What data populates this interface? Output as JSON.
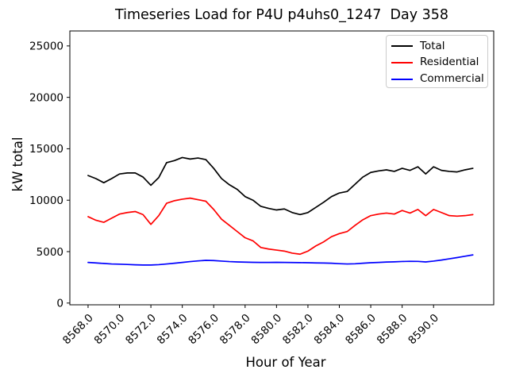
{
  "chart_data": {
    "type": "line",
    "title": "Timeseries Load for P4U p4uhs0_1247  Day 358",
    "xlabel": "Hour of Year",
    "ylabel": "kW total",
    "grid": false,
    "legend_position": "upper right",
    "xlim": [
      8566.84,
      8593.83
    ],
    "ylim": [
      -170,
      26455
    ],
    "x_ticks": [
      8568,
      8570,
      8572,
      8574,
      8576,
      8578,
      8580,
      8582,
      8584,
      8586,
      8588,
      8590
    ],
    "x_tick_labels": [
      "8568.0",
      "8570.0",
      "8572.0",
      "8574.0",
      "8576.0",
      "8578.0",
      "8580.0",
      "8582.0",
      "8584.0",
      "8586.0",
      "8588.0",
      "8590.0"
    ],
    "y_ticks": [
      0,
      5000,
      10000,
      15000,
      20000,
      25000
    ],
    "y_tick_labels": [
      "0",
      "5000",
      "10000",
      "15000",
      "20000",
      "25000"
    ],
    "frame_color": "#000000",
    "tick_label_color": "#000000",
    "legend_border_color": "#cccccc",
    "x": [
      8568.0,
      8568.5,
      8569.0,
      8569.5,
      8570.0,
      8570.5,
      8571.0,
      8571.5,
      8572.0,
      8572.5,
      8573.0,
      8573.5,
      8574.0,
      8574.5,
      8575.0,
      8575.5,
      8576.0,
      8576.5,
      8577.0,
      8577.5,
      8578.0,
      8578.5,
      8579.0,
      8579.5,
      8580.0,
      8580.5,
      8581.0,
      8581.5,
      8582.0,
      8582.5,
      8583.0,
      8583.5,
      8584.0,
      8584.5,
      8585.0,
      8585.5,
      8586.0,
      8586.5,
      8587.0,
      8587.5,
      8588.0,
      8588.5,
      8589.0,
      8589.5,
      8590.0,
      8590.5,
      8591.0,
      8591.5,
      8592.0,
      8592.5
    ],
    "series": [
      {
        "name": "Total",
        "color": "#000000",
        "values": [
          12400,
          12100,
          11700,
          12100,
          12550,
          12650,
          12650,
          12250,
          11450,
          12200,
          13650,
          13850,
          14150,
          14000,
          14100,
          13950,
          13100,
          12100,
          11500,
          11050,
          10350,
          10000,
          9400,
          9200,
          9050,
          9150,
          8800,
          8600,
          8800,
          9300,
          9800,
          10350,
          10700,
          10850,
          11550,
          12250,
          12700,
          12850,
          12950,
          12800,
          13100,
          12900,
          13250,
          12550,
          13250,
          12900,
          12800,
          12750,
          12950,
          13100
        ]
      },
      {
        "name": "Residential",
        "color": "#ff0000",
        "values": [
          8400,
          8050,
          7850,
          8250,
          8650,
          8800,
          8900,
          8600,
          7650,
          8500,
          9700,
          9950,
          10100,
          10200,
          10050,
          9900,
          9100,
          8150,
          7550,
          6950,
          6350,
          6050,
          5400,
          5250,
          5150,
          5050,
          4850,
          4750,
          5050,
          5550,
          5950,
          6450,
          6750,
          6950,
          7550,
          8100,
          8500,
          8650,
          8750,
          8650,
          9000,
          8750,
          9100,
          8500,
          9100,
          8800,
          8500,
          8450,
          8500,
          8600
        ]
      },
      {
        "name": "Commercial",
        "color": "#0000ff",
        "values": [
          3950,
          3900,
          3850,
          3800,
          3780,
          3750,
          3720,
          3700,
          3700,
          3730,
          3800,
          3870,
          3950,
          4030,
          4100,
          4150,
          4130,
          4080,
          4030,
          4000,
          3980,
          3960,
          3950,
          3950,
          3960,
          3950,
          3940,
          3930,
          3920,
          3900,
          3890,
          3870,
          3830,
          3800,
          3820,
          3870,
          3920,
          3950,
          3990,
          4010,
          4040,
          4060,
          4050,
          4000,
          4080,
          4180,
          4300,
          4420,
          4550,
          4680
        ]
      }
    ]
  }
}
